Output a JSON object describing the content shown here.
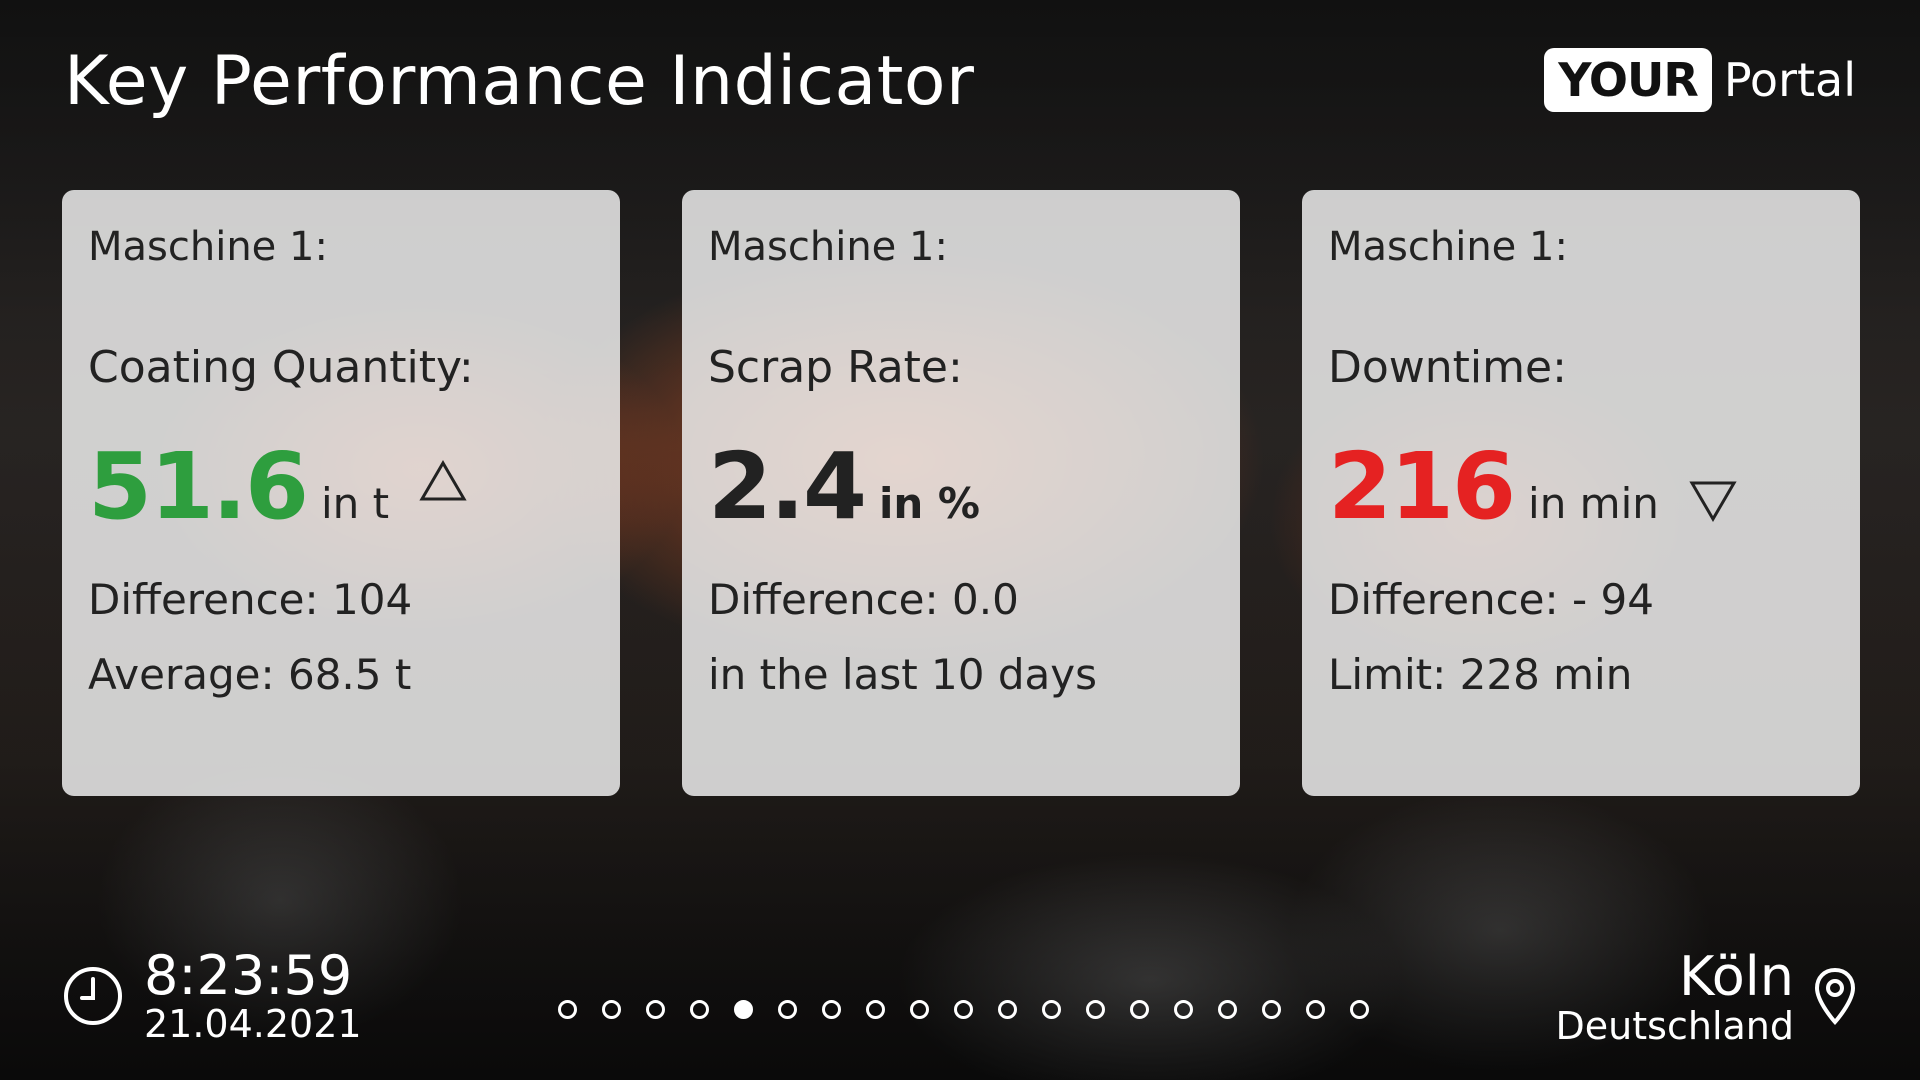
{
  "header": {
    "title": "Key Performance Indicator",
    "logo_box": "YOUR",
    "logo_text": "Portal"
  },
  "cards": [
    {
      "machine": "Maschine 1:",
      "metric": "Coating Quantity:",
      "value": "51.6",
      "unit": "in t",
      "value_color": "#2e9e3e",
      "trend": "up",
      "line1": "Difference: 104",
      "line2": "Average: 68.5 t"
    },
    {
      "machine": "Maschine 1:",
      "metric": "Scrap Rate:",
      "value": "2.4",
      "unit": "in %",
      "value_color": "#222222",
      "trend": "none",
      "line1": "Difference: 0.0",
      "line2": "in the last 10 days"
    },
    {
      "machine": "Maschine 1:",
      "metric": "Downtime:",
      "value": "216",
      "unit": "in min",
      "value_color": "#e52222",
      "trend": "down",
      "line1": "Difference: - 94",
      "line2": "Limit: 228 min"
    }
  ],
  "footer": {
    "time": "8:23:59",
    "date": "21.04.2021",
    "city": "Köln",
    "country": "Deutschland",
    "clock_icon": "clock-icon",
    "location_icon": "location-pin-icon"
  },
  "pagination": {
    "total": 19,
    "active_index": 4
  }
}
